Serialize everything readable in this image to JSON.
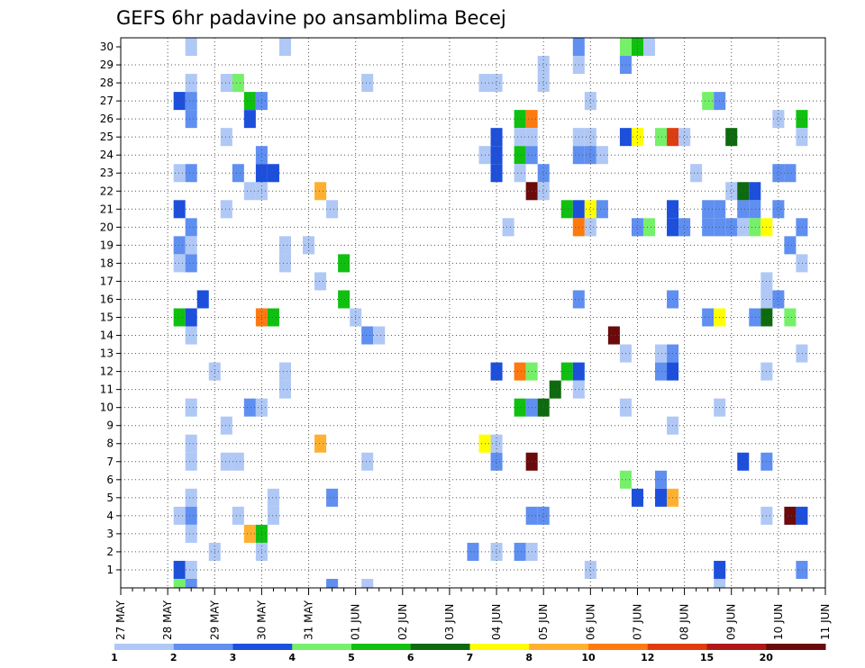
{
  "chart_data": {
    "type": "heatmap",
    "title": "GEFS 6hr padavine po ansamblima Becej",
    "x_axis": {
      "ticks": [
        "27 MAY",
        "28 MAY",
        "29 MAY",
        "30 MAY",
        "31 MAY",
        "01 JUN",
        "02 JUN",
        "03 JUN",
        "04 JUN",
        "05 JUN",
        "06 JUN",
        "07 JUN",
        "08 JUN",
        "09 JUN",
        "10 JUN",
        "11 JUN"
      ],
      "steps_per_day": 4
    },
    "y_axis": {
      "ticks": [
        "1",
        "2",
        "3",
        "4",
        "5",
        "6",
        "7",
        "8",
        "9",
        "10",
        "11",
        "12",
        "13",
        "14",
        "15",
        "16",
        "17",
        "18",
        "19",
        "20",
        "21",
        "22",
        "23",
        "24",
        "25",
        "26",
        "27",
        "28",
        "29",
        "30"
      ],
      "range": [
        0,
        30
      ]
    },
    "grid": true,
    "colorbar": {
      "labels": [
        "1",
        "2",
        "3",
        "4",
        "5",
        "6",
        "7",
        "8",
        "10",
        "12",
        "15",
        "20"
      ],
      "colors": [
        "#b0c8f5",
        "#5f8ff0",
        "#1c4fdc",
        "#76f06a",
        "#10c010",
        "#0e6a0e",
        "#ffff00",
        "#ffb030",
        "#fd7a10",
        "#e03c10",
        "#b01818",
        "#6a0a0a"
      ]
    },
    "cells": [
      [
        28.5,
        30,
        1
      ],
      [
        28.5,
        28,
        1
      ],
      [
        28.25,
        27,
        3
      ],
      [
        28.5,
        27,
        2
      ],
      [
        28.5,
        26,
        2
      ],
      [
        28.25,
        23,
        1
      ],
      [
        28.5,
        23,
        2
      ],
      [
        28.5,
        20,
        2
      ],
      [
        28.25,
        21,
        3
      ],
      [
        28.25,
        19,
        2
      ],
      [
        28.5,
        19,
        1
      ],
      [
        28.25,
        18,
        1
      ],
      [
        28.5,
        18,
        2
      ],
      [
        28.75,
        16,
        3
      ],
      [
        28.25,
        15,
        5
      ],
      [
        28.5,
        15,
        3
      ],
      [
        28.5,
        14,
        1
      ],
      [
        28.5,
        10,
        1
      ],
      [
        28.5,
        8,
        1
      ],
      [
        28.5,
        7,
        1
      ],
      [
        28.5,
        5,
        1
      ],
      [
        28.25,
        4,
        1
      ],
      [
        28.5,
        4,
        2
      ],
      [
        28.5,
        3,
        1
      ],
      [
        28.25,
        1,
        3
      ],
      [
        28.5,
        1,
        1
      ],
      [
        28.25,
        0,
        4
      ],
      [
        28.5,
        0,
        2
      ],
      [
        29.0,
        12,
        1
      ],
      [
        29.0,
        2,
        1
      ],
      [
        29.25,
        28,
        1
      ],
      [
        29.5,
        28,
        4
      ],
      [
        29.25,
        25,
        1
      ],
      [
        29.25,
        21,
        1
      ],
      [
        29.25,
        9,
        1
      ],
      [
        29.25,
        7,
        1
      ],
      [
        29.5,
        7,
        1
      ],
      [
        29.5,
        23,
        2
      ],
      [
        29.5,
        4,
        1
      ],
      [
        29.75,
        27,
        5
      ],
      [
        30.0,
        27,
        2
      ],
      [
        29.75,
        26,
        3
      ],
      [
        29.75,
        22,
        1
      ],
      [
        30.0,
        22,
        1
      ],
      [
        30.0,
        24,
        2
      ],
      [
        30.0,
        23,
        3
      ],
      [
        30.25,
        23,
        3
      ],
      [
        29.75,
        10,
        2
      ],
      [
        30.0,
        10,
        1
      ],
      [
        29.75,
        3,
        8
      ],
      [
        30.0,
        3,
        5
      ],
      [
        30.0,
        15,
        9
      ],
      [
        30.25,
        15,
        5
      ],
      [
        30.0,
        2,
        1
      ],
      [
        30.25,
        5,
        1
      ],
      [
        30.25,
        4,
        1
      ],
      [
        30.5,
        30,
        1
      ],
      [
        30.5,
        19,
        1
      ],
      [
        30.5,
        18,
        1
      ],
      [
        30.5,
        12,
        1
      ],
      [
        30.5,
        11,
        1
      ],
      [
        31.0,
        19,
        1
      ],
      [
        31.25,
        17,
        1
      ],
      [
        31.25,
        22,
        8
      ],
      [
        31.25,
        8,
        8
      ],
      [
        31.5,
        0,
        2
      ],
      [
        31.5,
        5,
        2
      ],
      [
        31.5,
        21,
        1
      ],
      [
        31.75,
        16,
        5
      ],
      [
        31.75,
        18,
        5
      ],
      [
        32.0,
        15,
        1
      ],
      [
        32.25,
        28,
        1
      ],
      [
        32.25,
        7,
        1
      ],
      [
        32.25,
        0,
        1
      ],
      [
        32.25,
        14,
        2
      ],
      [
        32.5,
        14,
        1
      ],
      [
        34.5,
        2,
        2
      ],
      [
        34.75,
        28,
        1
      ],
      [
        35.0,
        28,
        1
      ],
      [
        34.75,
        24,
        1
      ],
      [
        35.0,
        24,
        3
      ],
      [
        35.0,
        25,
        3
      ],
      [
        35.0,
        23,
        3
      ],
      [
        35.0,
        12,
        3
      ],
      [
        35.0,
        7,
        2
      ],
      [
        35.0,
        2,
        1
      ],
      [
        34.75,
        8,
        7
      ],
      [
        35.0,
        8,
        1
      ],
      [
        35.25,
        20,
        1
      ],
      [
        35.5,
        26,
        5
      ],
      [
        35.75,
        26,
        9
      ],
      [
        35.5,
        25,
        1
      ],
      [
        35.75,
        25,
        1
      ],
      [
        35.5,
        24,
        5
      ],
      [
        35.75,
        24,
        2
      ],
      [
        35.5,
        23,
        1
      ],
      [
        35.75,
        22,
        12
      ],
      [
        36.0,
        23,
        2
      ],
      [
        36.0,
        22,
        1
      ],
      [
        35.5,
        12,
        9
      ],
      [
        35.75,
        12,
        4
      ],
      [
        35.5,
        10,
        5
      ],
      [
        35.75,
        10,
        2
      ],
      [
        36.0,
        10,
        6
      ],
      [
        35.75,
        7,
        12
      ],
      [
        35.75,
        4,
        2
      ],
      [
        36.0,
        4,
        2
      ],
      [
        35.5,
        2,
        2
      ],
      [
        35.75,
        2,
        1
      ],
      [
        36.0,
        29,
        1
      ],
      [
        36.0,
        28,
        1
      ],
      [
        36.25,
        11,
        6
      ],
      [
        36.5,
        12,
        5
      ],
      [
        36.75,
        12,
        3
      ],
      [
        36.75,
        11,
        1
      ],
      [
        36.5,
        21,
        5
      ],
      [
        36.75,
        21,
        3
      ],
      [
        37.0,
        21,
        7
      ],
      [
        37.25,
        21,
        2
      ],
      [
        36.75,
        20,
        9
      ],
      [
        37.0,
        20,
        1
      ],
      [
        36.75,
        30,
        2
      ],
      [
        36.75,
        29,
        1
      ],
      [
        36.75,
        25,
        1
      ],
      [
        37.0,
        25,
        1
      ],
      [
        36.75,
        24,
        2
      ],
      [
        37.0,
        24,
        2
      ],
      [
        37.25,
        24,
        1
      ],
      [
        37.0,
        27,
        1
      ],
      [
        36.75,
        16,
        2
      ],
      [
        37.0,
        1,
        1
      ],
      [
        37.5,
        14,
        12
      ],
      [
        37.75,
        30,
        4
      ],
      [
        38.0,
        30,
        5
      ],
      [
        38.25,
        30,
        1
      ],
      [
        37.75,
        29,
        2
      ],
      [
        37.75,
        25,
        3
      ],
      [
        38.0,
        25,
        7
      ],
      [
        37.75,
        13,
        1
      ],
      [
        37.75,
        10,
        1
      ],
      [
        37.75,
        6,
        4
      ],
      [
        38.0,
        5,
        3
      ],
      [
        38.0,
        20,
        2
      ],
      [
        38.25,
        20,
        4
      ],
      [
        38.5,
        25,
        4
      ],
      [
        38.75,
        25,
        10
      ],
      [
        38.75,
        13,
        2
      ],
      [
        38.5,
        12,
        2
      ],
      [
        38.75,
        12,
        3
      ],
      [
        38.5,
        13,
        1
      ],
      [
        38.75,
        9,
        1
      ],
      [
        38.5,
        6,
        2
      ],
      [
        38.5,
        5,
        3
      ],
      [
        38.75,
        5,
        8
      ],
      [
        38.75,
        21,
        3
      ],
      [
        38.75,
        20,
        3
      ],
      [
        39.0,
        20,
        2
      ],
      [
        38.75,
        16,
        2
      ],
      [
        39.0,
        25,
        1
      ],
      [
        39.25,
        23,
        1
      ],
      [
        39.5,
        27,
        4
      ],
      [
        39.75,
        27,
        2
      ],
      [
        39.5,
        21,
        2
      ],
      [
        39.75,
        21,
        2
      ],
      [
        39.5,
        20,
        2
      ],
      [
        39.75,
        20,
        2
      ],
      [
        39.5,
        15,
        2
      ],
      [
        39.75,
        15,
        7
      ],
      [
        39.75,
        10,
        1
      ],
      [
        39.75,
        1,
        3
      ],
      [
        39.75,
        0,
        1
      ],
      [
        40.0,
        25,
        6
      ],
      [
        40.0,
        22,
        1
      ],
      [
        40.25,
        21,
        2
      ],
      [
        40.5,
        21,
        2
      ],
      [
        40.0,
        20,
        2
      ],
      [
        40.25,
        20,
        1
      ],
      [
        40.5,
        20,
        4
      ],
      [
        40.75,
        20,
        7
      ],
      [
        40.25,
        22,
        6
      ],
      [
        40.5,
        22,
        3
      ],
      [
        40.25,
        7,
        3
      ],
      [
        40.5,
        15,
        2
      ],
      [
        40.75,
        15,
        6
      ],
      [
        40.75,
        16,
        1
      ],
      [
        41.0,
        16,
        2
      ],
      [
        40.75,
        17,
        1
      ],
      [
        40.75,
        12,
        1
      ],
      [
        40.75,
        7,
        2
      ],
      [
        40.75,
        4,
        1
      ],
      [
        41.0,
        21,
        2
      ],
      [
        41.0,
        26,
        1
      ],
      [
        41.0,
        23,
        2
      ],
      [
        41.25,
        23,
        2
      ],
      [
        41.25,
        19,
        2
      ],
      [
        41.25,
        4,
        12
      ],
      [
        41.5,
        4,
        3
      ],
      [
        41.25,
        15,
        4
      ],
      [
        41.5,
        26,
        5
      ],
      [
        41.5,
        25,
        1
      ],
      [
        41.5,
        20,
        2
      ],
      [
        41.5,
        13,
        1
      ],
      [
        41.5,
        18,
        1
      ],
      [
        41.5,
        1,
        2
      ]
    ]
  }
}
